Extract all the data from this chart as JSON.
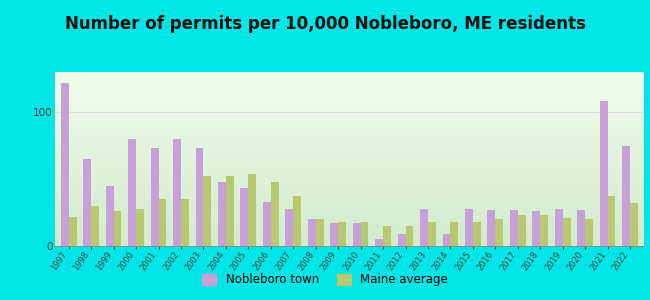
{
  "title": "Number of permits per 10,000 Nobleboro, ME residents",
  "years": [
    1997,
    1998,
    1999,
    2000,
    2001,
    2002,
    2003,
    2004,
    2005,
    2006,
    2007,
    2008,
    2009,
    2010,
    2011,
    2012,
    2013,
    2014,
    2015,
    2016,
    2017,
    2018,
    2019,
    2020,
    2021,
    2022
  ],
  "nobleboro": [
    122,
    65,
    45,
    80,
    73,
    80,
    73,
    48,
    43,
    33,
    28,
    20,
    17,
    17,
    5,
    9,
    28,
    9,
    28,
    27,
    27,
    26,
    28,
    27,
    108,
    75
  ],
  "maine_avg": [
    22,
    30,
    26,
    28,
    35,
    35,
    52,
    52,
    54,
    48,
    37,
    20,
    18,
    18,
    15,
    15,
    18,
    18,
    18,
    20,
    23,
    23,
    21,
    20,
    37,
    32
  ],
  "nobleboro_color": "#c8a0d8",
  "maine_color": "#b8c870",
  "bg_outer": "#00e5e5",
  "bg_plot_top": "#f0faf0",
  "bg_plot_bottom": "#dff0d0",
  "title_fontsize": 12,
  "ylim": [
    0,
    130
  ],
  "yticks": [
    0,
    100
  ],
  "legend_nobleboro": "Nobleboro town",
  "legend_maine": "Maine average"
}
